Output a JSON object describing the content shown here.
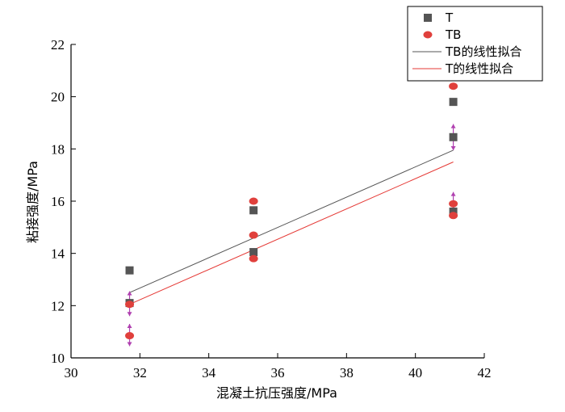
{
  "chart_data": {
    "type": "scatter",
    "xlabel": "混凝土抗压强度/MPa",
    "ylabel": "粘接强度/MPa",
    "xlim": [
      30,
      42
    ],
    "ylim": [
      10,
      22
    ],
    "x_ticks": [
      "30",
      "32",
      "34",
      "36",
      "38",
      "40",
      "42"
    ],
    "y_ticks": [
      "10",
      "12",
      "14",
      "16",
      "18",
      "20",
      "22"
    ],
    "legend_position": "top-right",
    "series": [
      {
        "name": "T",
        "marker": "square",
        "color": "#555555",
        "points": [
          {
            "x": 31.7,
            "y": 13.35
          },
          {
            "x": 31.7,
            "y": 12.1
          },
          {
            "x": 35.3,
            "y": 15.65
          },
          {
            "x": 35.3,
            "y": 14.05
          },
          {
            "x": 41.1,
            "y": 19.8
          },
          {
            "x": 41.1,
            "y": 18.45
          },
          {
            "x": 41.1,
            "y": 15.6
          }
        ]
      },
      {
        "name": "TB",
        "marker": "circle",
        "color": "#e0403c",
        "points": [
          {
            "x": 31.7,
            "y": 12.05
          },
          {
            "x": 31.7,
            "y": 10.85
          },
          {
            "x": 35.3,
            "y": 16.0
          },
          {
            "x": 35.3,
            "y": 14.7
          },
          {
            "x": 35.3,
            "y": 13.8
          },
          {
            "x": 41.1,
            "y": 20.4
          },
          {
            "x": 41.1,
            "y": 15.9
          },
          {
            "x": 41.1,
            "y": 15.45
          }
        ]
      },
      {
        "name": "TB的线性拟合",
        "type": "line",
        "color": "#555555",
        "points": [
          {
            "x": 31.7,
            "y": 12.5
          },
          {
            "x": 41.1,
            "y": 17.95
          }
        ]
      },
      {
        "name": "T的线性拟合",
        "type": "line",
        "color": "#e53935",
        "points": [
          {
            "x": 31.7,
            "y": 12.05
          },
          {
            "x": 41.1,
            "y": 17.5
          }
        ]
      }
    ],
    "error_bars": {
      "color": "#b040b0",
      "items": [
        {
          "x": 31.7,
          "low": 11.6,
          "high": 12.55
        },
        {
          "x": 31.7,
          "low": 10.45,
          "high": 11.3
        },
        {
          "x": 41.1,
          "low": 17.95,
          "high": 18.95
        },
        {
          "x": 41.1,
          "low": 15.45,
          "high": 16.35
        }
      ]
    }
  }
}
